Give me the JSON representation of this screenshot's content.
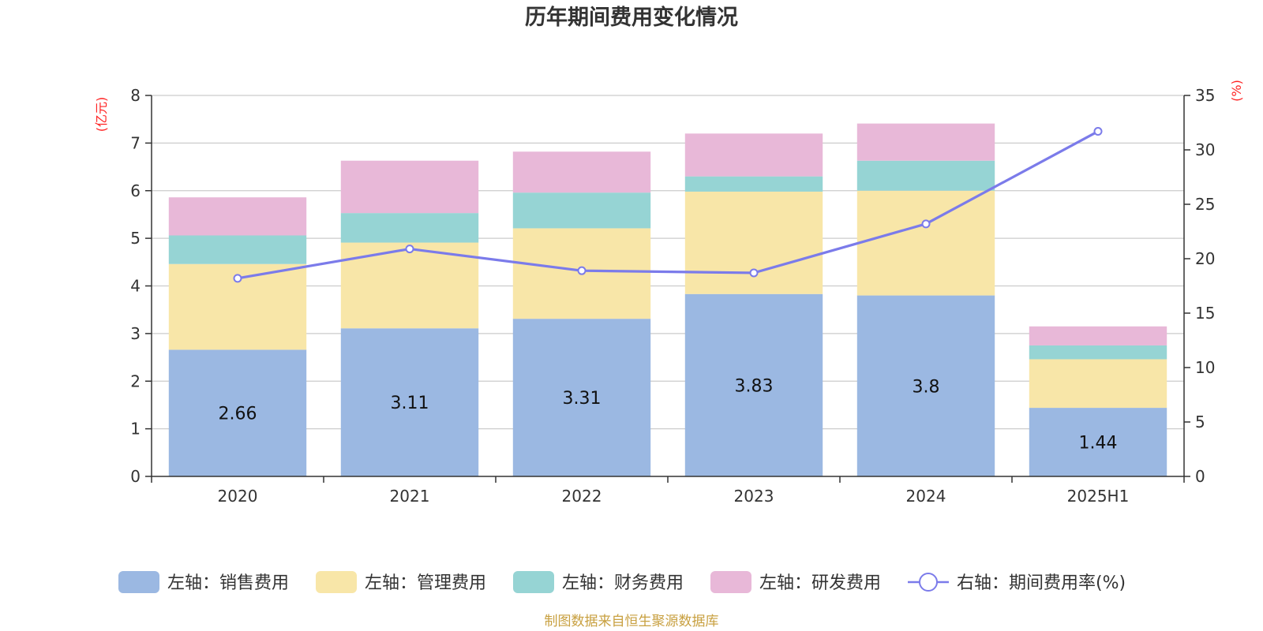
{
  "chart_data": {
    "type": "bar",
    "title": "历年期间费用变化情况",
    "categories": [
      "2020",
      "2021",
      "2022",
      "2023",
      "2024",
      "2025H1"
    ],
    "left_axis": {
      "unit": "(亿元)",
      "ylim": [
        0,
        8
      ],
      "ticks": [
        "0",
        "1",
        "2",
        "3",
        "4",
        "5",
        "6",
        "7",
        "8"
      ]
    },
    "right_axis": {
      "unit": "(%)",
      "ylim": [
        0,
        35
      ],
      "ticks": [
        "0",
        "5",
        "10",
        "15",
        "20",
        "25",
        "30",
        "35"
      ]
    },
    "series": [
      {
        "name": "左轴：销售费用",
        "kind": "bar",
        "color": "#9bb8e2",
        "values": [
          2.66,
          3.11,
          3.31,
          3.83,
          3.8,
          1.44
        ],
        "labels": [
          "2.66",
          "3.11",
          "3.31",
          "3.83",
          "3.8",
          "1.44"
        ]
      },
      {
        "name": "左轴：管理费用",
        "kind": "bar",
        "color": "#f8e6a8",
        "values": [
          1.8,
          1.8,
          1.9,
          2.15,
          2.2,
          1.02
        ]
      },
      {
        "name": "左轴：财务费用",
        "kind": "bar",
        "color": "#96d4d4",
        "values": [
          0.6,
          0.62,
          0.75,
          0.32,
          0.63,
          0.29
        ]
      },
      {
        "name": "左轴：研发费用",
        "kind": "bar",
        "color": "#e8b8d8",
        "values": [
          0.8,
          1.1,
          0.86,
          0.9,
          0.78,
          0.4
        ]
      },
      {
        "name": "右轴：期间费用率(%)",
        "kind": "line",
        "color": "#7b7bea",
        "values": [
          18.2,
          20.9,
          18.9,
          18.7,
          23.2,
          31.7
        ]
      }
    ],
    "grid": true,
    "legend": "bottom-center"
  },
  "source_note": "制图数据来自恒生聚源数据库"
}
